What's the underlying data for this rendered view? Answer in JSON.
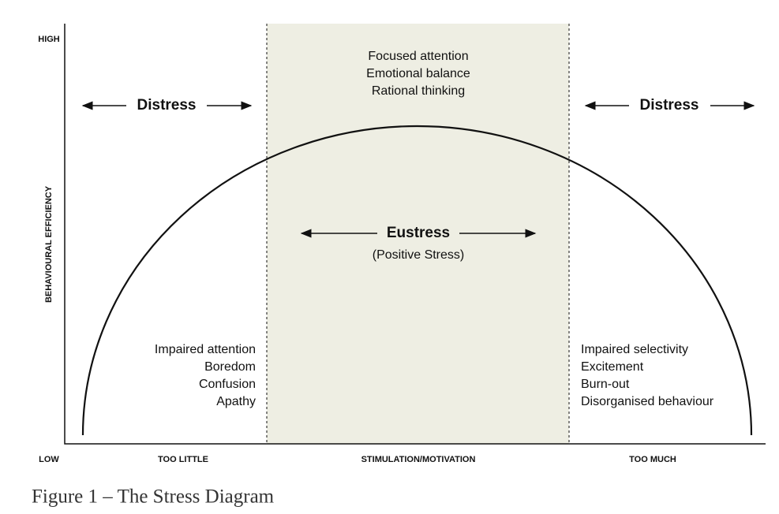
{
  "axes": {
    "y_high": "HIGH",
    "y_low": "LOW",
    "y_label": "BEHAVIOURAL EFFICIENCY",
    "x_labels": [
      "TOO LITTLE",
      "STIMULATION/MOTIVATION",
      "TOO MUCH"
    ]
  },
  "optimal_effects": [
    "Focused attention",
    "Emotional balance",
    "Rational thinking"
  ],
  "distress_left": "Distress",
  "distress_right": "Distress",
  "eustress": {
    "title": "Eustress",
    "subtitle": "(Positive Stress)"
  },
  "too_little_effects": [
    "Impaired attention",
    "Boredom",
    "Confusion",
    "Apathy"
  ],
  "too_much_effects": [
    "Impaired selectivity",
    "Excitement",
    "Burn-out",
    "Disorganised behaviour"
  ],
  "caption": "Figure 1 – The Stress Diagram"
}
